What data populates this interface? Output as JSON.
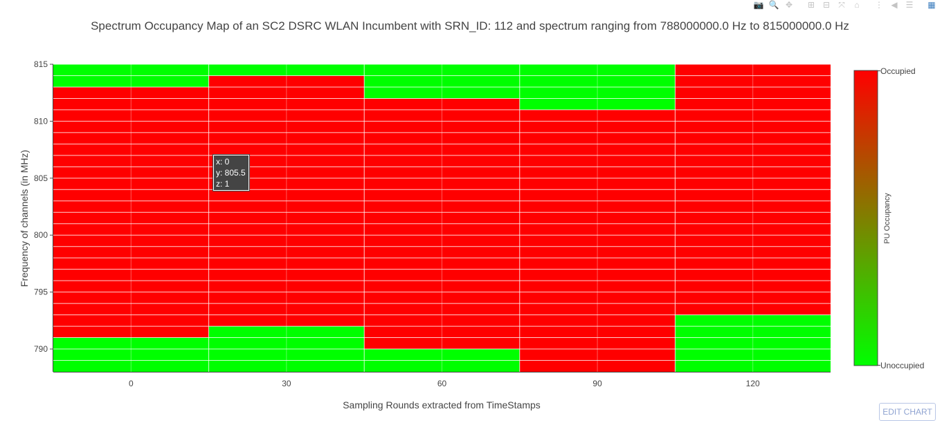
{
  "toolbar": {
    "buttons": [
      {
        "name": "camera-icon",
        "glyph": "📷",
        "group": 1
      },
      {
        "name": "zoom-icon",
        "glyph": "🔍",
        "group": 1
      },
      {
        "name": "pan-icon",
        "glyph": "✥",
        "group": 1
      },
      {
        "name": "zoom-in-icon",
        "glyph": "⊞",
        "group": 2
      },
      {
        "name": "zoom-out-icon",
        "glyph": "⊟",
        "group": 2
      },
      {
        "name": "autoscale-icon",
        "glyph": "⤧",
        "group": 2
      },
      {
        "name": "home-icon",
        "glyph": "⌂",
        "group": 2
      },
      {
        "name": "spike-lines-icon",
        "glyph": "⋮",
        "group": 3
      },
      {
        "name": "hover-closest-icon",
        "glyph": "◀",
        "group": 3
      },
      {
        "name": "hover-compare-icon",
        "glyph": "☰",
        "group": 3
      },
      {
        "name": "plotly-logo-icon",
        "glyph": "▦",
        "group": 4
      }
    ]
  },
  "tooltip": {
    "x_line": "x: 0",
    "y_line": "y: 805.5",
    "z_line": "z: 1"
  },
  "edit_button": {
    "label": "EDIT CHART"
  },
  "chart_data": {
    "type": "heatmap",
    "title": "Spectrum Occupancy Map of an SC2 DSRC WLAN Incumbent with SRN_ID: 112 and spectrum ranging from 788000000.0 Hz to 815000000.0 Hz",
    "xlabel": "Sampling Rounds extracted from TimeStamps",
    "ylabel": "Frequency of channels (in MHz)",
    "x": [
      0,
      30,
      60,
      90,
      120
    ],
    "y": [
      788.5,
      789.5,
      790.5,
      791.5,
      792.5,
      793.5,
      794.5,
      795.5,
      796.5,
      797.5,
      798.5,
      799.5,
      800.5,
      801.5,
      802.5,
      803.5,
      804.5,
      805.5,
      806.5,
      807.5,
      808.5,
      809.5,
      810.5,
      811.5,
      812.5,
      813.5,
      814.5
    ],
    "z_columns": [
      [
        0,
        0,
        0,
        1,
        1,
        1,
        1,
        1,
        1,
        1,
        1,
        1,
        1,
        1,
        1,
        1,
        1,
        1,
        1,
        1,
        1,
        1,
        1,
        1,
        1,
        0,
        0
      ],
      [
        0,
        0,
        0,
        0,
        1,
        1,
        1,
        1,
        1,
        1,
        1,
        1,
        1,
        1,
        1,
        1,
        1,
        1,
        1,
        1,
        1,
        1,
        1,
        1,
        1,
        1,
        0
      ],
      [
        0,
        0,
        1,
        1,
        1,
        1,
        1,
        1,
        1,
        1,
        1,
        1,
        1,
        1,
        1,
        1,
        1,
        1,
        1,
        1,
        1,
        1,
        1,
        1,
        0,
        0,
        0
      ],
      [
        1,
        1,
        1,
        1,
        1,
        1,
        1,
        1,
        1,
        1,
        1,
        1,
        1,
        1,
        1,
        1,
        1,
        1,
        1,
        1,
        1,
        1,
        1,
        0,
        0,
        0,
        0
      ],
      [
        0,
        0,
        0,
        0,
        0,
        1,
        1,
        1,
        1,
        1,
        1,
        1,
        1,
        1,
        1,
        1,
        1,
        1,
        1,
        1,
        1,
        1,
        1,
        1,
        1,
        1,
        1
      ]
    ],
    "x_range": [
      -15,
      135
    ],
    "y_range": [
      788,
      815
    ],
    "x_ticks": [
      0,
      30,
      60,
      90,
      120
    ],
    "y_ticks": [
      790,
      795,
      800,
      805,
      810,
      815
    ],
    "colorscale": {
      "low_color": "#00ff00",
      "high_color": "#ff0000",
      "low_label": "Unoccupied",
      "high_label": "Occupied"
    },
    "colorbar_title": "PU Occupancy",
    "grid": true
  }
}
